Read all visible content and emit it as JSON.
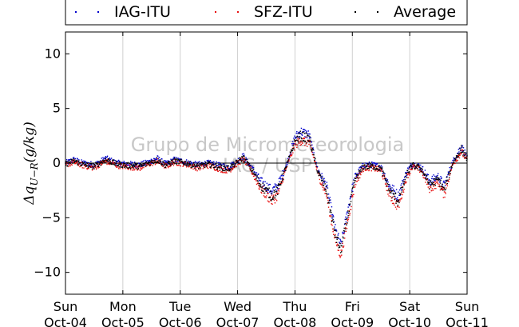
{
  "chart_data": {
    "type": "scatter",
    "title": "",
    "xlabel": "",
    "ylabel": "Δq_{U−R}(g/kg)",
    "ylabel_main": "Δq",
    "ylabel_sub": "U−R",
    "ylabel_unit": "(g/kg)",
    "ylim": [
      -12,
      12
    ],
    "yticks": [
      -10,
      -5,
      0,
      5,
      10
    ],
    "xlim": [
      0,
      7
    ],
    "x_unit": "days since Sun Oct-04 00:00",
    "xticks": [
      {
        "day": "Sun",
        "date": "Oct-04"
      },
      {
        "day": "Mon",
        "date": "Oct-05"
      },
      {
        "day": "Tue",
        "date": "Oct-06"
      },
      {
        "day": "Wed",
        "date": "Oct-07"
      },
      {
        "day": "Thu",
        "date": "Oct-08"
      },
      {
        "day": "Fri",
        "date": "Oct-09"
      },
      {
        "day": "Sat",
        "date": "Oct-10"
      },
      {
        "day": "Sun",
        "date": "Oct-11"
      }
    ],
    "grid": "vertical",
    "zero_line": true,
    "legend_position": "top",
    "watermark": [
      "Grupo de Micrometeorologia",
      "IAG / USP"
    ],
    "series": [
      {
        "name": "IAG-ITU",
        "color": "#0000cc",
        "offset": 0.35
      },
      {
        "name": "SFZ-ITU",
        "color": "#e81010",
        "offset": -0.35
      },
      {
        "name": "Average",
        "color": "#000000",
        "offset": 0
      }
    ],
    "curve_x": [
      0,
      0.15,
      0.3,
      0.5,
      0.7,
      0.9,
      1.05,
      1.3,
      1.6,
      1.75,
      1.9,
      2.1,
      2.3,
      2.5,
      2.7,
      2.85,
      3.0,
      3.1,
      3.25,
      3.4,
      3.6,
      3.7,
      3.85,
      4.0,
      4.1,
      4.25,
      4.4,
      4.55,
      4.7,
      4.8,
      4.95,
      5.05,
      5.2,
      5.35,
      5.5,
      5.65,
      5.8,
      5.95,
      6.05,
      6.2,
      6.35,
      6.5,
      6.6,
      6.75,
      6.9,
      7.0
    ],
    "curve_y": [
      -0.1,
      0.2,
      -0.1,
      -0.3,
      0.3,
      -0.1,
      -0.2,
      -0.3,
      0.3,
      -0.2,
      0.2,
      0.0,
      -0.3,
      -0.1,
      -0.4,
      -0.5,
      0.1,
      0.5,
      -0.6,
      -2.0,
      -3.0,
      -2.5,
      -0.3,
      2.0,
      2.5,
      2.2,
      -0.8,
      -2.5,
      -6.5,
      -8.0,
      -4.0,
      -1.5,
      -0.3,
      -0.3,
      -0.5,
      -2.5,
      -3.5,
      -1.0,
      -0.2,
      -0.5,
      -2.0,
      -1.5,
      -2.5,
      0.0,
      1.3,
      0.4
    ]
  }
}
